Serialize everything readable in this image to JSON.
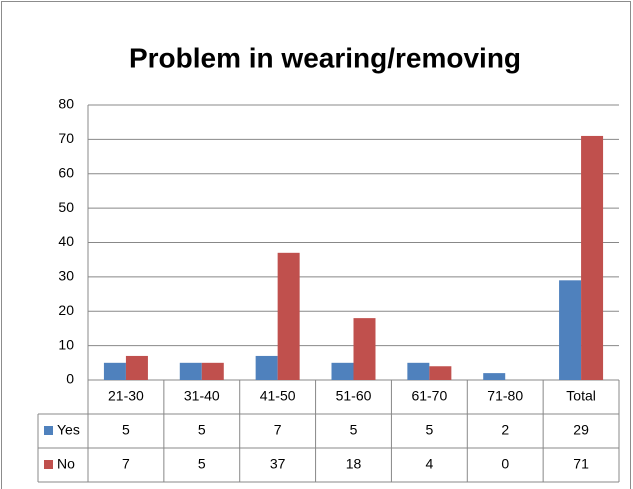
{
  "chart_data": {
    "type": "bar",
    "title": "Problem in wearing/removing",
    "categories": [
      "21-30",
      "31-40",
      "41-50",
      "51-60",
      "61-70",
      "71-80",
      "Total"
    ],
    "series": [
      {
        "name": "Yes",
        "color": "#4f81bd",
        "values": [
          5,
          5,
          7,
          5,
          5,
          2,
          29
        ]
      },
      {
        "name": "No",
        "color": "#c0504d",
        "values": [
          7,
          5,
          37,
          18,
          4,
          0,
          71
        ]
      }
    ],
    "ylim": [
      0,
      80
    ],
    "yticks": [
      0,
      10,
      20,
      30,
      40,
      50,
      60,
      70,
      80
    ],
    "grid": true
  }
}
